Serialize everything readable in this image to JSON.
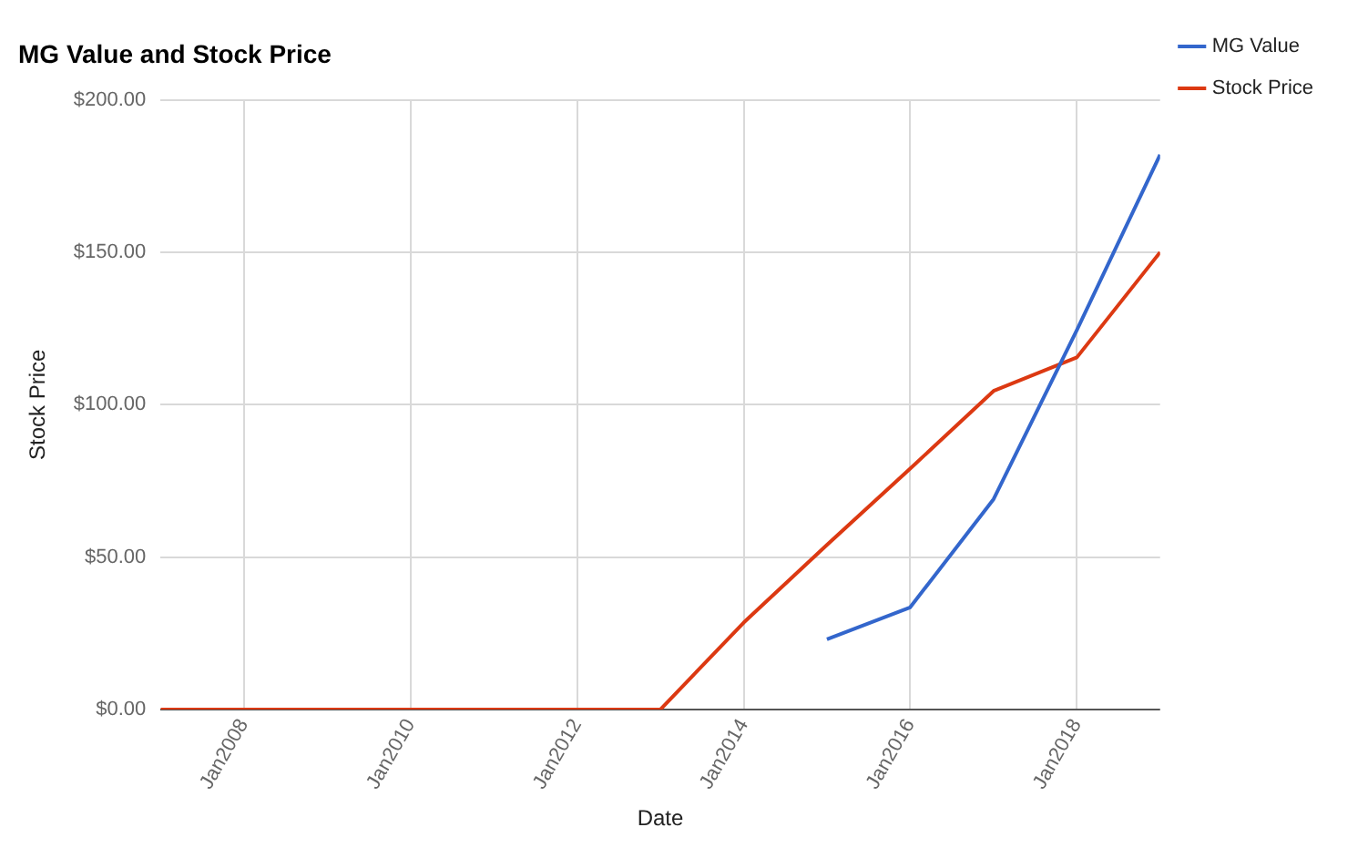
{
  "chart_data": {
    "type": "line",
    "title": "MG Value and Stock Price",
    "xlabel": "Date",
    "ylabel": "Stock Price",
    "x": [
      "2007-01",
      "2008-01",
      "2009-01",
      "2010-01",
      "2011-01",
      "2012-01",
      "2013-01",
      "2014-01",
      "2015-01",
      "2016-01",
      "2017-01",
      "2018-01",
      "2019-01"
    ],
    "series": [
      {
        "name": "MG Value",
        "color": "#3366cc",
        "values": [
          null,
          null,
          null,
          null,
          null,
          null,
          null,
          null,
          23,
          33.5,
          69,
          124.5,
          182
        ]
      },
      {
        "name": "Stock Price",
        "color": "#dc3912",
        "values": [
          0,
          0,
          0,
          0,
          0,
          0,
          0,
          28.5,
          54,
          79,
          104.5,
          115.5,
          150
        ]
      }
    ],
    "xlim": [
      "2007-01",
      "2019-01"
    ],
    "xticks": [
      {
        "value": "2008-01",
        "label": "Jan2008"
      },
      {
        "value": "2010-01",
        "label": "Jan2010"
      },
      {
        "value": "2012-01",
        "label": "Jan2012"
      },
      {
        "value": "2014-01",
        "label": "Jan2014"
      },
      {
        "value": "2016-01",
        "label": "Jan2016"
      },
      {
        "value": "2018-01",
        "label": "Jan2018"
      }
    ],
    "ylim": [
      0,
      200
    ],
    "yticks": [
      {
        "value": 0,
        "label": "$0.00"
      },
      {
        "value": 50,
        "label": "$50.00"
      },
      {
        "value": 100,
        "label": "$100.00"
      },
      {
        "value": 150,
        "label": "$150.00"
      },
      {
        "value": 200,
        "label": "$200.00"
      }
    ],
    "grid": true,
    "legend": "top right",
    "marker": "none",
    "line_style": "solid"
  }
}
